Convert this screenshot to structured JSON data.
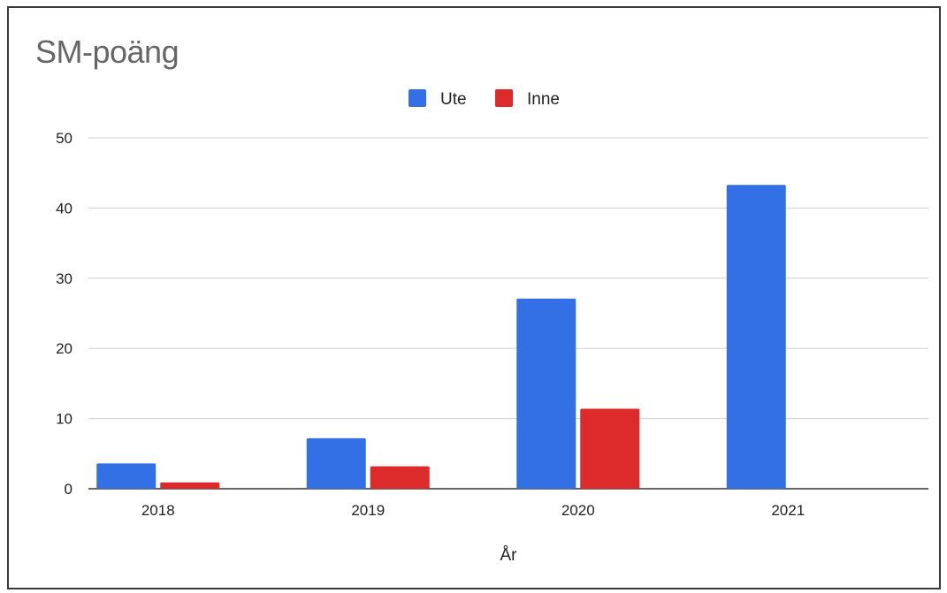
{
  "chart_data": {
    "type": "bar",
    "title": "SM-poäng",
    "xlabel": "År",
    "ylabel": "",
    "categories": [
      "2018",
      "2019",
      "2020",
      "2021"
    ],
    "series": [
      {
        "name": "Ute",
        "color": "#3370e6",
        "values": [
          3.6,
          7.2,
          27.1,
          43.3
        ]
      },
      {
        "name": "Inne",
        "color": "#dd2a2a",
        "values": [
          0.9,
          3.2,
          11.4,
          0
        ]
      }
    ],
    "ylim": [
      0,
      50
    ],
    "yticks": [
      "0",
      "10",
      "20",
      "30",
      "40",
      "50"
    ],
    "grid": true,
    "legend_position": "top-center"
  }
}
